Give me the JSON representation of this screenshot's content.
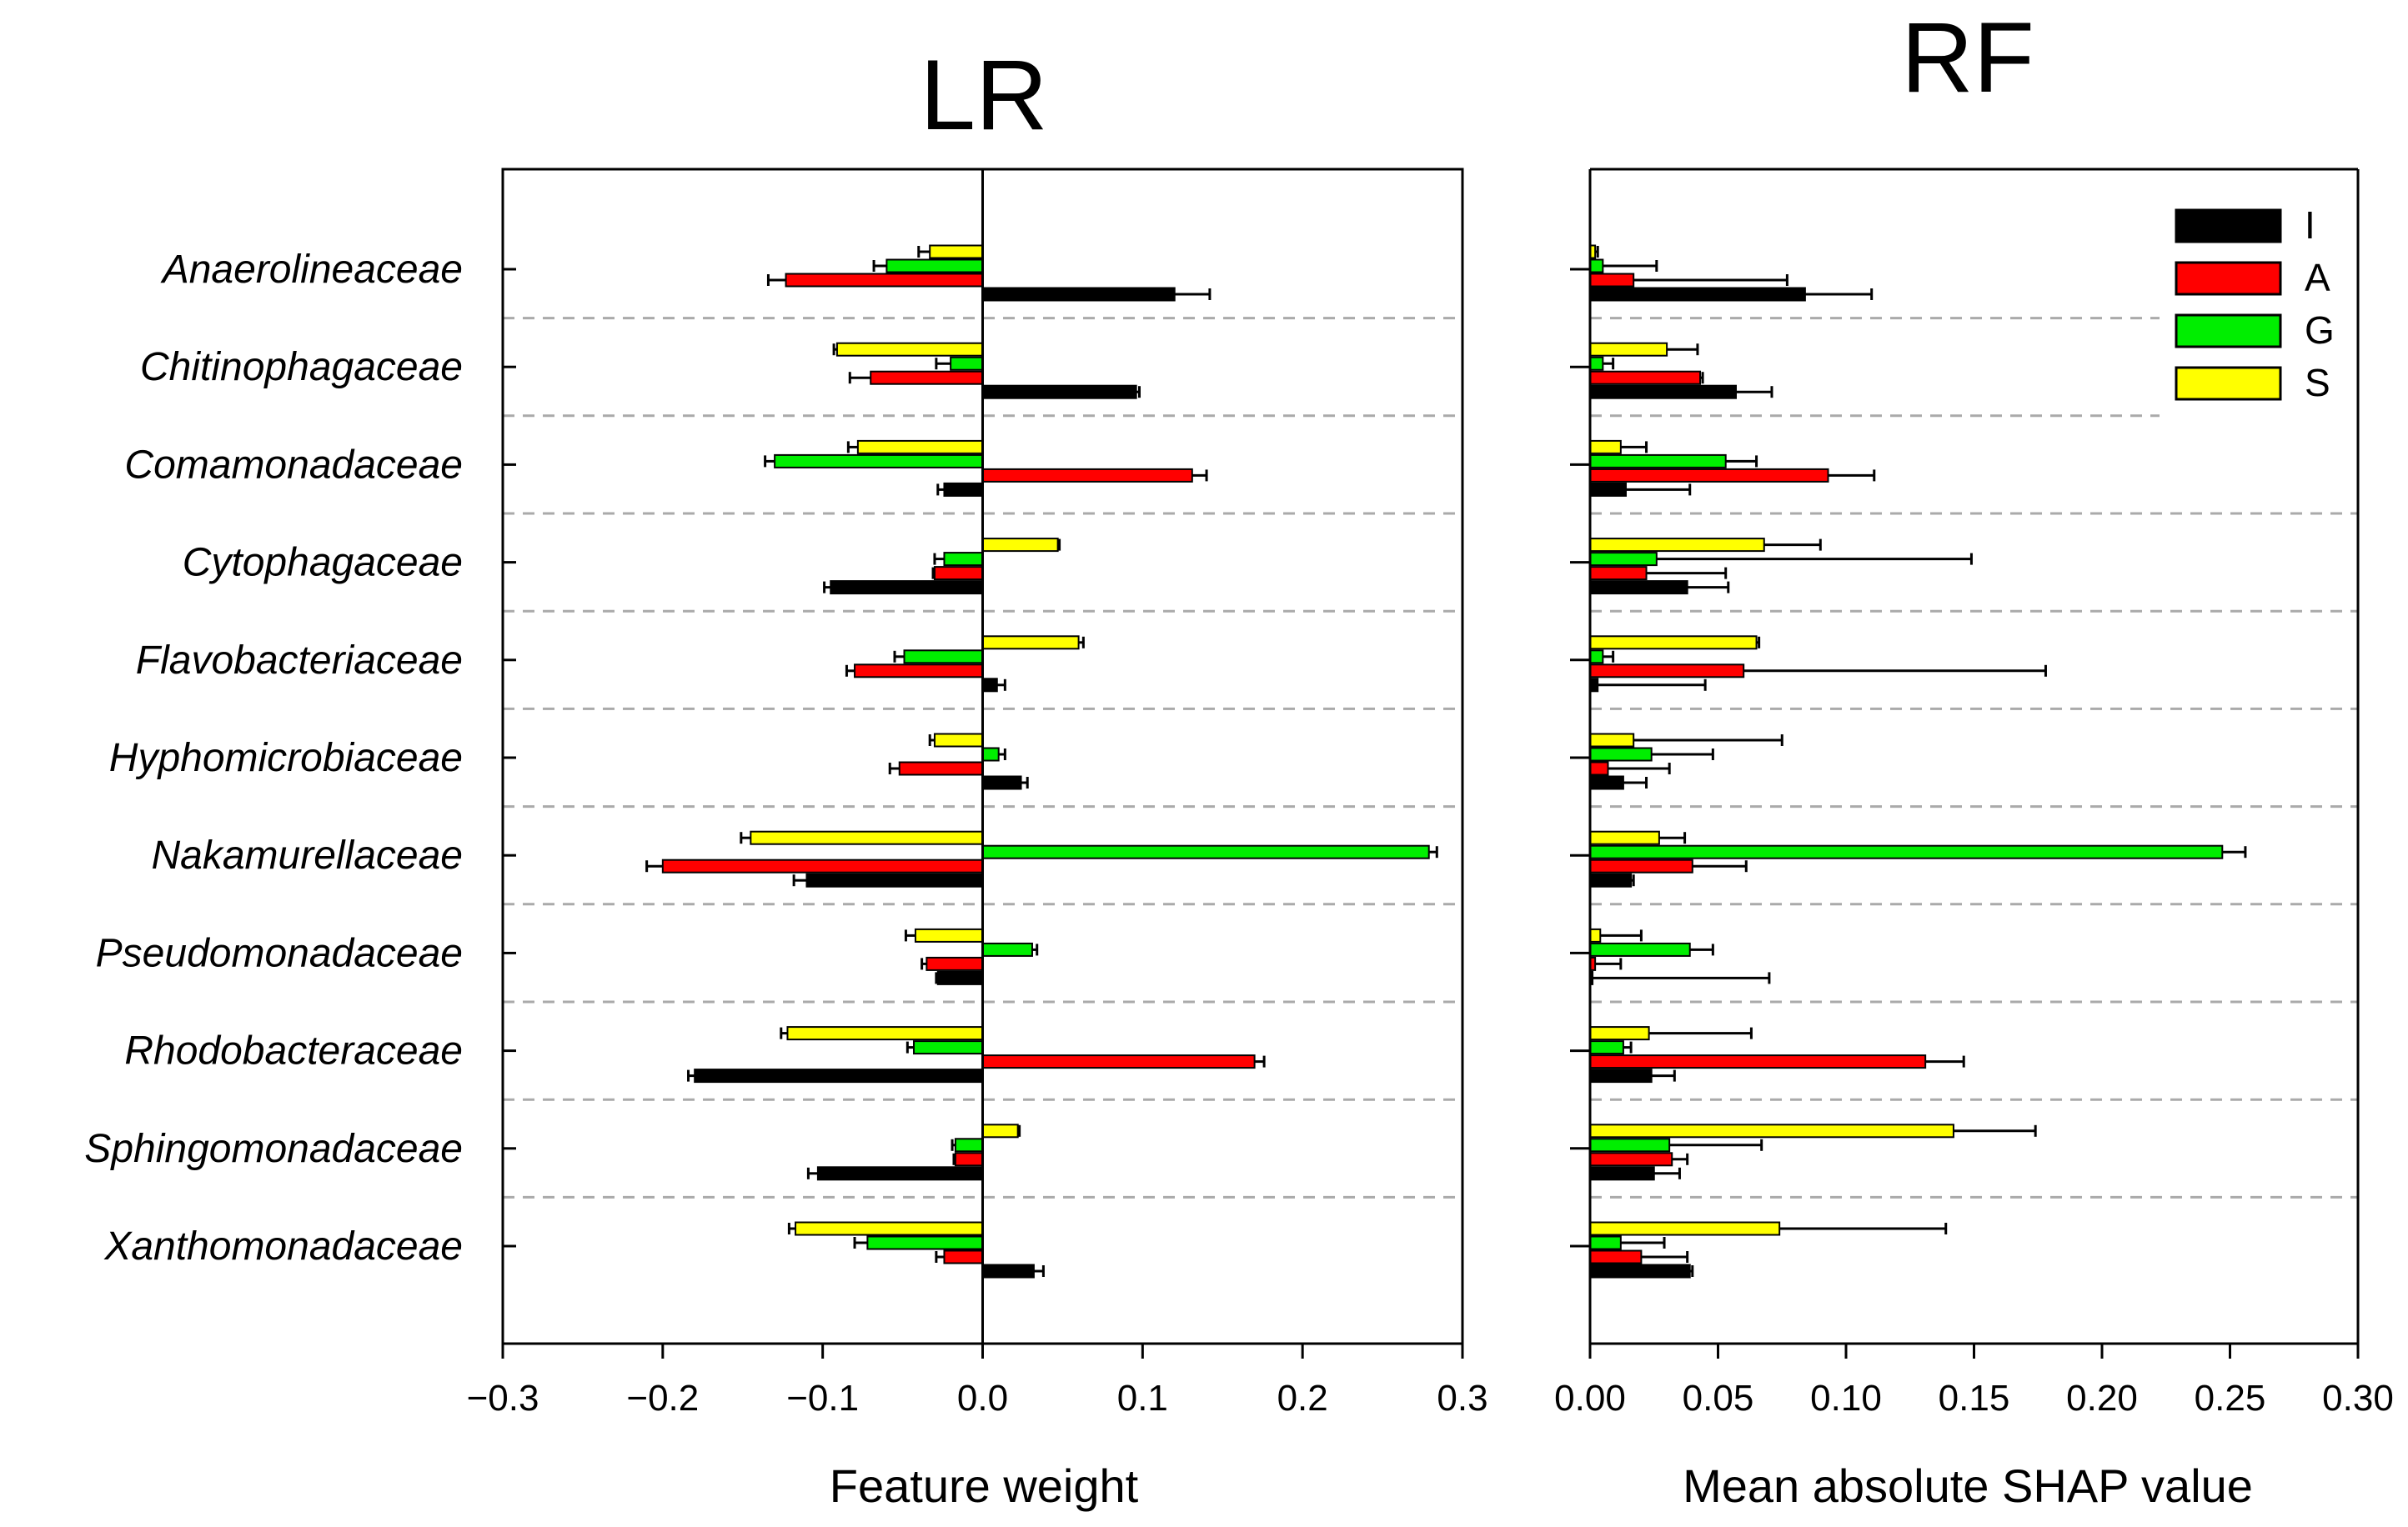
{
  "chart_data": [
    {
      "type": "bar",
      "orientation": "horizontal",
      "title": "LR",
      "xlabel": "Feature weight",
      "ylabel": "",
      "xlim": [
        -0.3,
        0.3
      ],
      "ticks": [
        -0.3,
        -0.2,
        -0.1,
        0.0,
        0.1,
        0.2,
        0.3
      ],
      "tick_labels": [
        "−0.3",
        "−0.2",
        "−0.1",
        "0.0",
        "0.1",
        "0.2",
        "0.3"
      ],
      "categories": [
        "Anaerolineaceae",
        "Chitinophagaceae",
        "Comamonadaceae",
        "Cytophagaceae",
        "Flavobacteriaceae",
        "Hyphomicrobiaceae",
        "Nakamurellaceae",
        "Pseudomonadaceae",
        "Rhodobacteraceae",
        "Sphingomonadaceae",
        "Xanthomonadaceae"
      ],
      "series": [
        {
          "name": "I",
          "color": "#000000",
          "values": [
            0.12,
            0.096,
            -0.024,
            -0.095,
            0.009,
            0.024,
            -0.11,
            -0.028,
            -0.18,
            -0.103,
            0.032
          ],
          "errors": [
            0.022,
            0.002,
            0.004,
            0.004,
            0.005,
            0.004,
            0.008,
            0.001,
            0.004,
            0.006,
            0.006
          ]
        },
        {
          "name": "A",
          "color": "#ff0000",
          "values": [
            -0.123,
            -0.07,
            0.131,
            -0.03,
            -0.08,
            -0.052,
            -0.2,
            -0.035,
            0.17,
            -0.017,
            -0.024
          ],
          "errors": [
            0.011,
            0.013,
            0.009,
            0.001,
            0.005,
            0.006,
            0.01,
            0.003,
            0.006,
            0.001,
            0.005
          ]
        },
        {
          "name": "G",
          "color": "#00ee00",
          "values": [
            -0.06,
            -0.02,
            -0.13,
            -0.024,
            -0.049,
            0.01,
            0.279,
            0.031,
            -0.043,
            -0.017,
            -0.072
          ],
          "errors": [
            0.008,
            0.009,
            0.006,
            0.006,
            0.006,
            0.004,
            0.005,
            0.003,
            0.004,
            0.002,
            0.008
          ]
        },
        {
          "name": "S",
          "color": "#ffff00",
          "values": [
            -0.033,
            -0.091,
            -0.078,
            0.047,
            0.06,
            -0.03,
            -0.145,
            -0.042,
            -0.122,
            0.022,
            -0.117
          ],
          "errors": [
            0.007,
            0.002,
            0.006,
            0.001,
            0.003,
            0.003,
            0.006,
            0.006,
            0.004,
            0.001,
            0.004
          ]
        }
      ]
    },
    {
      "type": "bar",
      "orientation": "horizontal",
      "title": "RF",
      "xlabel": "Mean absolute SHAP value",
      "ylabel": "",
      "xlim": [
        0.0,
        0.3
      ],
      "ticks": [
        0.0,
        0.05,
        0.1,
        0.15,
        0.2,
        0.25,
        0.3
      ],
      "tick_labels": [
        "0.00",
        "0.05",
        "0.10",
        "0.15",
        "0.20",
        "0.25",
        "0.30"
      ],
      "categories": [
        "Anaerolineaceae",
        "Chitinophagaceae",
        "Comamonadaceae",
        "Cytophagaceae",
        "Flavobacteriaceae",
        "Hyphomicrobiaceae",
        "Nakamurellaceae",
        "Pseudomonadaceae",
        "Rhodobacteraceae",
        "Sphingomonadaceae",
        "Xanthomonadaceae"
      ],
      "legend": {
        "position": "top-right",
        "entries": [
          "I",
          "A",
          "G",
          "S"
        ]
      },
      "series": [
        {
          "name": "I",
          "color": "#000000",
          "values": [
            0.084,
            0.057,
            0.014,
            0.038,
            0.003,
            0.013,
            0.016,
            0.001,
            0.024,
            0.025,
            0.039
          ],
          "errors": [
            0.026,
            0.014,
            0.025,
            0.016,
            0.042,
            0.009,
            0.001,
            0.069,
            0.009,
            0.01,
            0.001
          ]
        },
        {
          "name": "A",
          "color": "#ff0000",
          "values": [
            0.017,
            0.043,
            0.093,
            0.022,
            0.06,
            0.007,
            0.04,
            0.002,
            0.131,
            0.032,
            0.02
          ],
          "errors": [
            0.06,
            0.001,
            0.018,
            0.031,
            0.118,
            0.024,
            0.021,
            0.01,
            0.015,
            0.006,
            0.018
          ]
        },
        {
          "name": "G",
          "color": "#00ee00",
          "values": [
            0.005,
            0.005,
            0.053,
            0.026,
            0.005,
            0.024,
            0.247,
            0.039,
            0.013,
            0.031,
            0.012
          ],
          "errors": [
            0.021,
            0.004,
            0.012,
            0.123,
            0.004,
            0.024,
            0.009,
            0.009,
            0.003,
            0.036,
            0.017
          ]
        },
        {
          "name": "S",
          "color": "#ffff00",
          "values": [
            0.002,
            0.03,
            0.012,
            0.068,
            0.065,
            0.017,
            0.027,
            0.004,
            0.023,
            0.142,
            0.074
          ],
          "errors": [
            0.001,
            0.012,
            0.01,
            0.022,
            0.001,
            0.058,
            0.01,
            0.016,
            0.04,
            0.032,
            0.065
          ]
        }
      ]
    }
  ]
}
